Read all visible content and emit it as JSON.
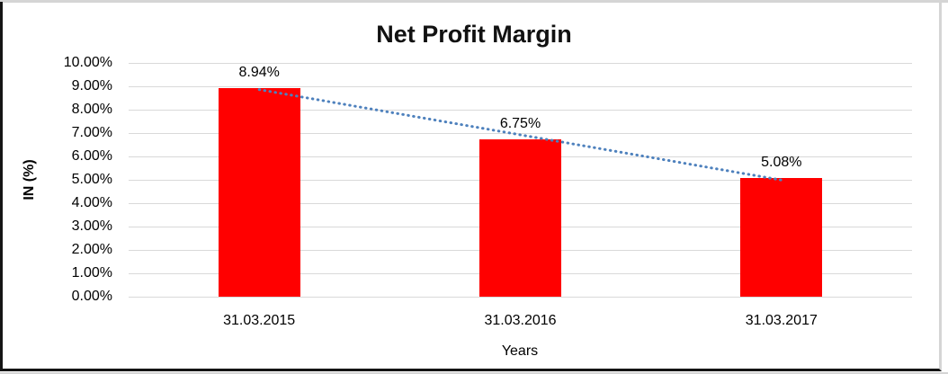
{
  "chart_data": {
    "type": "bar",
    "title": "Net Profit Margin",
    "categories": [
      "31.03.2015",
      "31.03.2016",
      "31.03.2017"
    ],
    "values": [
      8.94,
      6.75,
      5.08
    ],
    "data_labels": [
      "8.94%",
      "6.75%",
      "5.08%"
    ],
    "xlabel": "Years",
    "ylabel": "IN (%)",
    "ylim": [
      0,
      10
    ],
    "ytick_labels": [
      "10.00%",
      "9.00%",
      "8.00%",
      "7.00%",
      "6.00%",
      "5.00%",
      "4.00%",
      "3.00%",
      "2.00%",
      "1.00%",
      "0.00%"
    ],
    "bar_color": "#FF0000",
    "gridline_color": "#D9D9D9",
    "grid": true,
    "legend": "none",
    "trendline": {
      "style": "dotted",
      "color": "#4E81BD",
      "start_value": 8.86,
      "end_value": 4.99
    }
  }
}
